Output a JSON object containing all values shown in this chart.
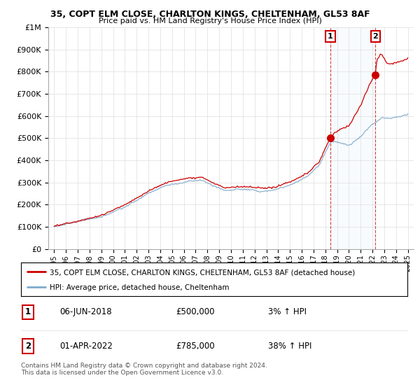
{
  "title": "35, COPT ELM CLOSE, CHARLTON KINGS, CHELTENHAM, GL53 8AF",
  "subtitle": "Price paid vs. HM Land Registry's House Price Index (HPI)",
  "legend_line1": "35, COPT ELM CLOSE, CHARLTON KINGS, CHELTENHAM, GL53 8AF (detached house)",
  "legend_line2": "HPI: Average price, detached house, Cheltenham",
  "annotation1_date": "06-JUN-2018",
  "annotation1_price": "£500,000",
  "annotation1_hpi": "3% ↑ HPI",
  "annotation2_date": "01-APR-2022",
  "annotation2_price": "£785,000",
  "annotation2_hpi": "38% ↑ HPI",
  "footer": "Contains HM Land Registry data © Crown copyright and database right 2024.\nThis data is licensed under the Open Government Licence v3.0.",
  "price_color": "#cc0000",
  "hpi_color": "#7faacc",
  "vline_color": "#cc4444",
  "sale1_x": 2018.43,
  "sale1_y": 500000,
  "sale2_x": 2022.25,
  "sale2_y": 785000,
  "ylim": [
    0,
    1000000
  ],
  "xlim": [
    1994.5,
    2025.5
  ],
  "annotation1_label": "1",
  "annotation2_label": "2"
}
